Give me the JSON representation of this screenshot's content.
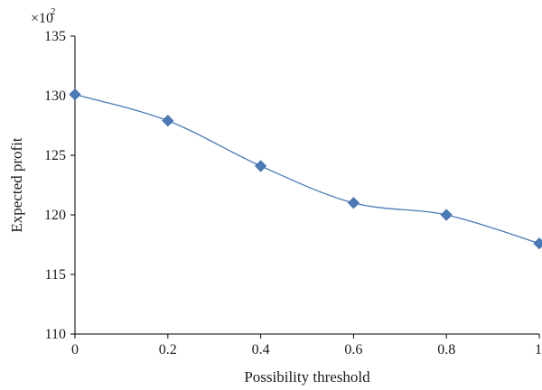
{
  "chart_data": {
    "type": "line",
    "xlabel": "Possibility threshold",
    "ylabel": "Expected profit",
    "y_multiplier": {
      "base": "×10",
      "exponent": "2"
    },
    "xlim": [
      0,
      1
    ],
    "ylim": [
      110,
      135
    ],
    "x_ticks": [
      0,
      0.2,
      0.4,
      0.6,
      0.8,
      1
    ],
    "x_tick_labels": [
      "0",
      "0.2",
      "0.4",
      "0.6",
      "0.8",
      "1"
    ],
    "y_ticks": [
      110,
      115,
      120,
      125,
      130,
      135
    ],
    "y_tick_labels": [
      "110",
      "115",
      "120",
      "125",
      "130",
      "135"
    ],
    "grid": false,
    "legend": "none",
    "series": [
      {
        "color": "#4a7ab8",
        "marker": "diamond",
        "x": [
          0,
          0.2,
          0.4,
          0.6,
          0.8,
          1
        ],
        "y": [
          130.1,
          127.9,
          124.1,
          121.0,
          120.0,
          117.6
        ]
      }
    ]
  }
}
